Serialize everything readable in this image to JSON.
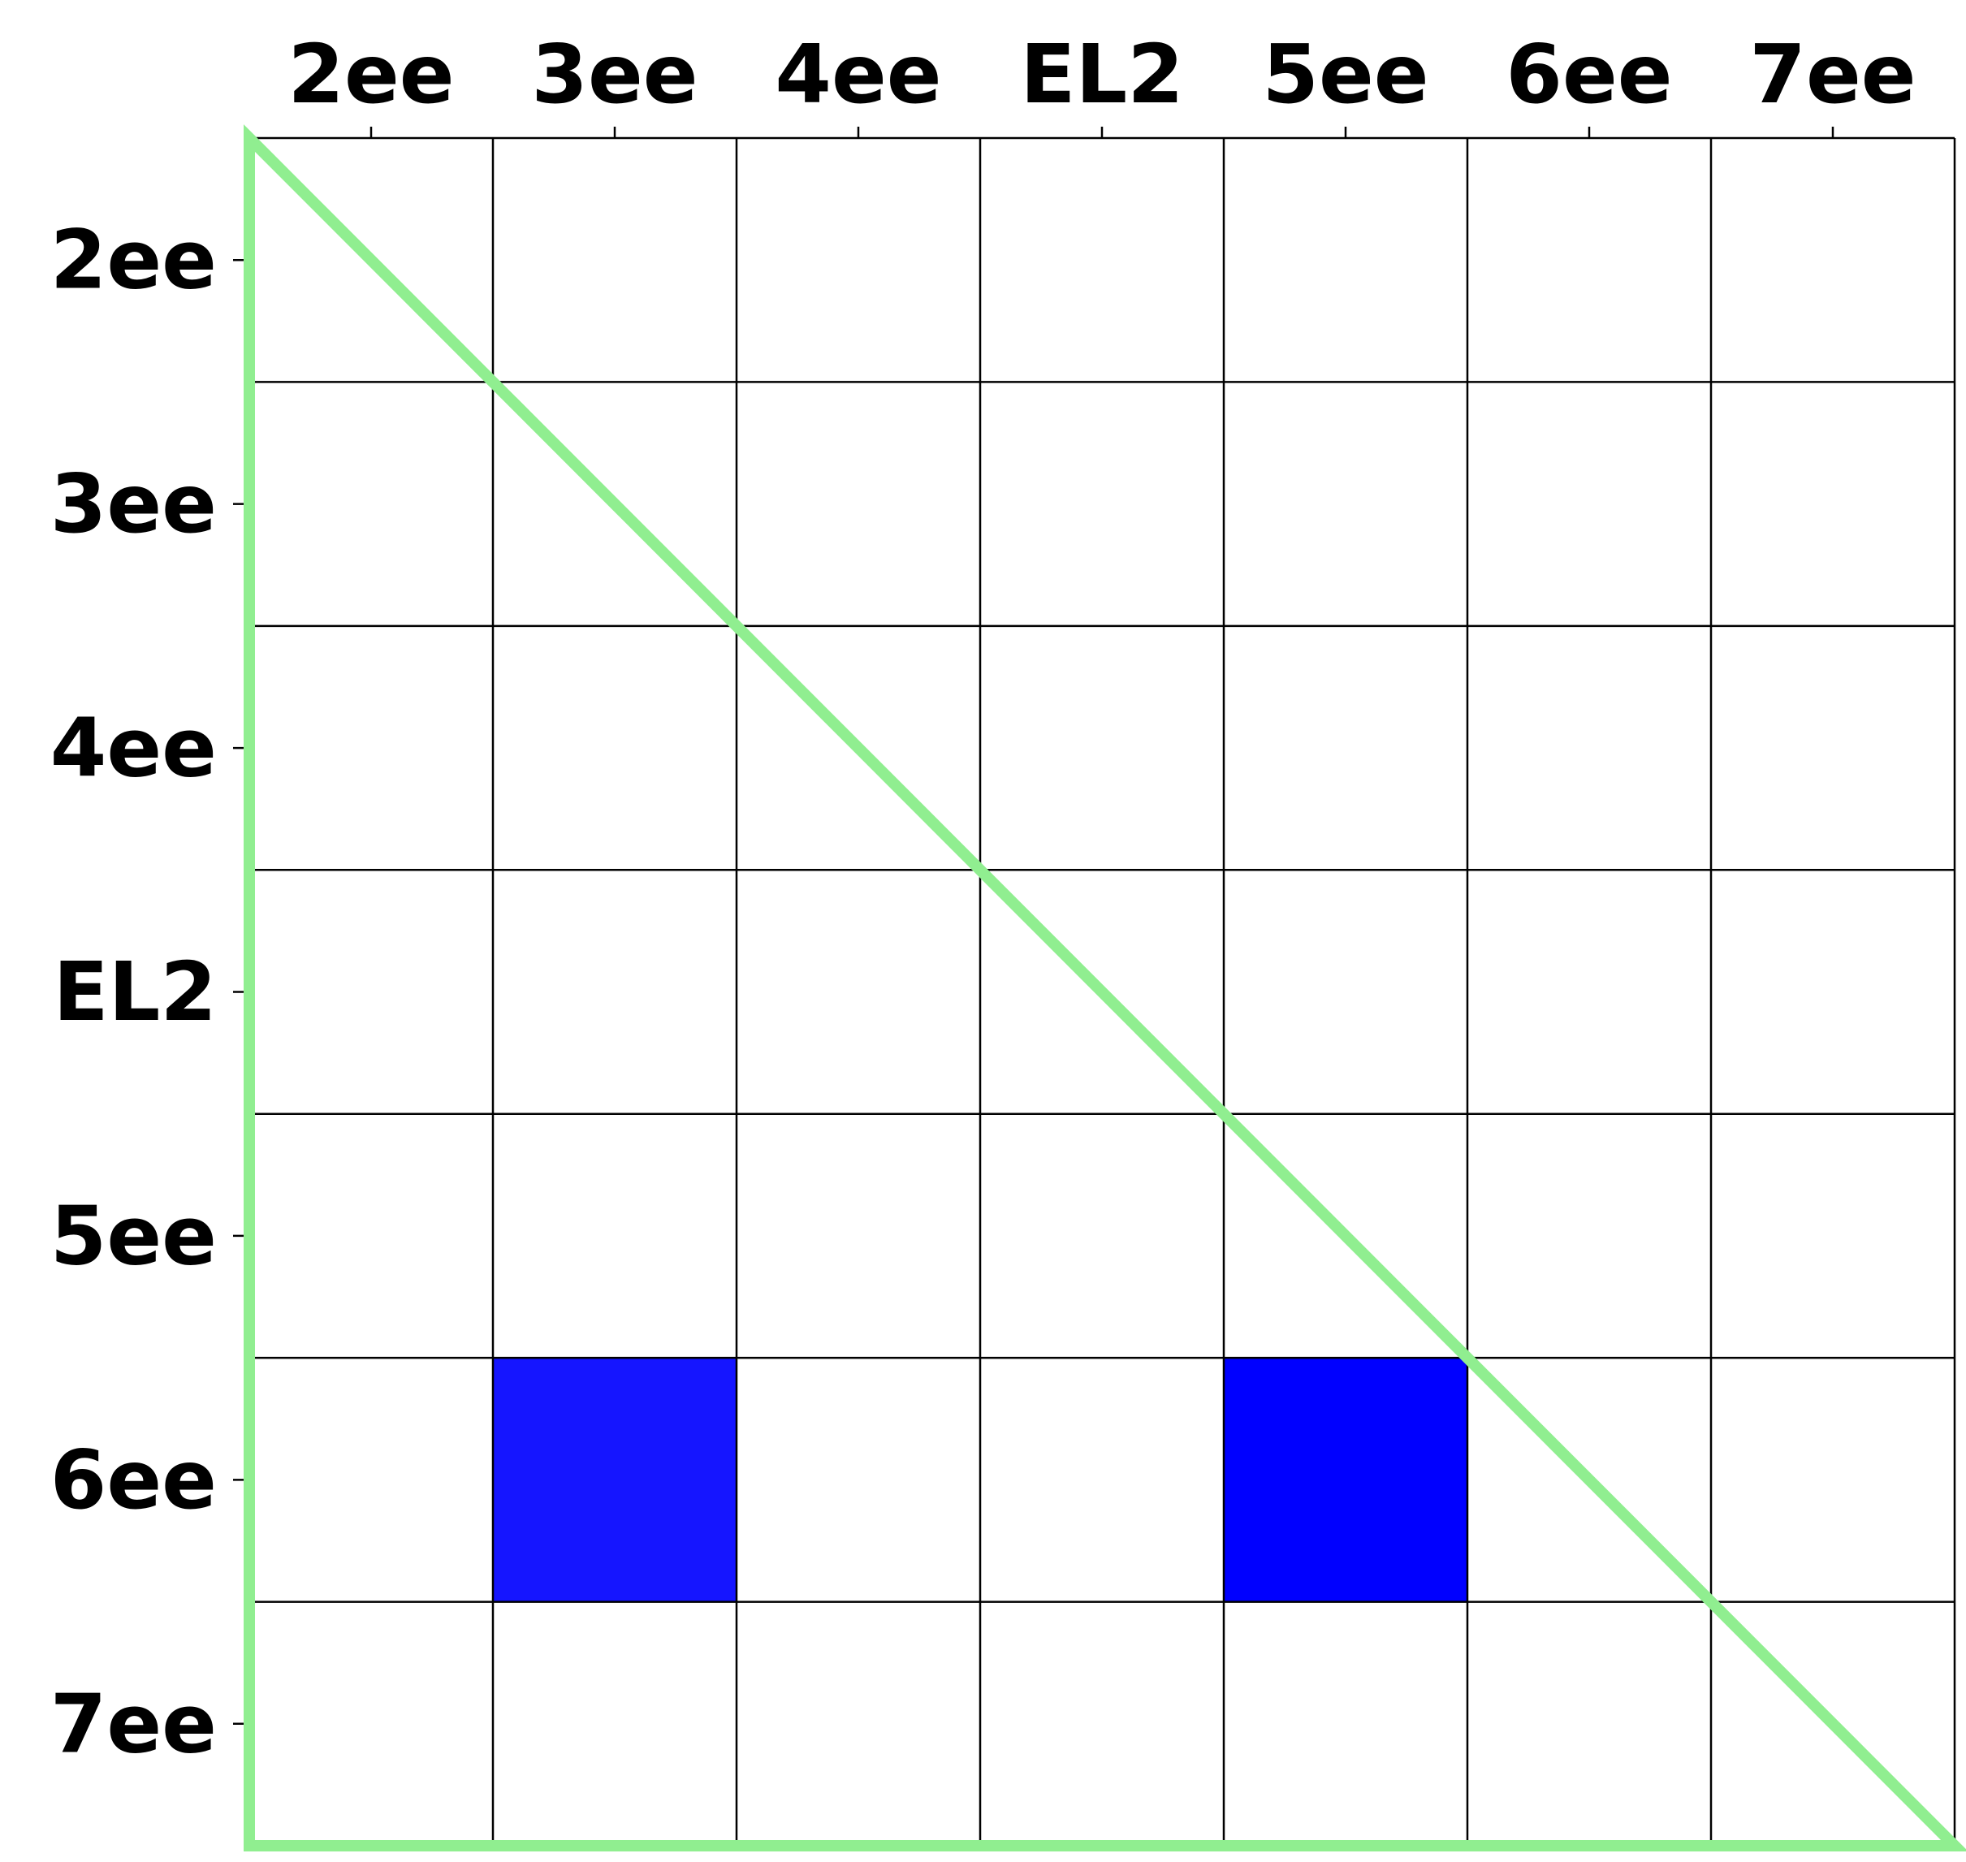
{
  "chart_data": {
    "type": "heatmap",
    "x_labels": [
      "2ee",
      "3ee",
      "4ee",
      "EL2",
      "5ee",
      "6ee",
      "7ee"
    ],
    "y_labels": [
      "2ee",
      "3ee",
      "4ee",
      "EL2",
      "5ee",
      "6ee",
      "7ee"
    ],
    "x_axis_position": "top",
    "grid": true,
    "legend": false,
    "filled_cells": [
      {
        "row": "6ee",
        "col": "3ee",
        "color": "#1515ff"
      },
      {
        "row": "6ee",
        "col": "5ee",
        "color": "#0000ff"
      }
    ],
    "diagonal_outline": {
      "color": "#90ee90",
      "shape": "lower-left triangle"
    },
    "colors": {
      "cell_default": "#ffffff",
      "grid_line": "#000000",
      "text": "#000000"
    }
  }
}
